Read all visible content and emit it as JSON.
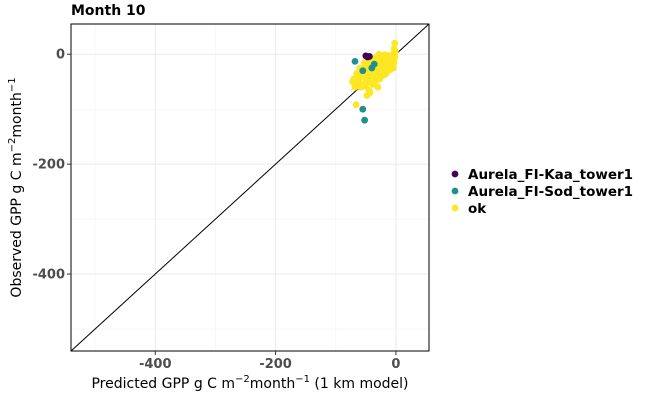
{
  "chart_data": {
    "type": "scatter",
    "title": "Month 10",
    "xlabel": {
      "main": "Predicted GPP g C m",
      "sup1": "−2",
      "mid": "month",
      "sup2": "−1",
      "tail": " (1 km model)"
    },
    "ylabel": {
      "main": "Observed GPP g C m",
      "sup1": "−2",
      "mid": "month",
      "sup2": "−1"
    },
    "xlim": [
      -540,
      55
    ],
    "ylim": [
      -540,
      55
    ],
    "x_ticks": [
      -400,
      -200,
      0
    ],
    "x_tick_labels": [
      "-400",
      "-200",
      "0"
    ],
    "y_ticks": [
      0,
      -200,
      -400
    ],
    "y_tick_labels": [
      "0",
      "-200",
      "-400"
    ],
    "grid": true,
    "reference_line": "y = x",
    "legend_position": "right",
    "series": [
      {
        "name": "Aurela_FI-Kaa_tower1",
        "color": "#440154",
        "points": [
          [
            -50,
            -3
          ],
          [
            -47,
            -5
          ],
          [
            -44,
            -4
          ]
        ]
      },
      {
        "name": "Aurela_FI-Sod_tower1",
        "color": "#21908C",
        "points": [
          [
            -68,
            -13
          ],
          [
            -55,
            -100
          ],
          [
            -52,
            -120
          ],
          [
            -55,
            -30
          ],
          [
            -40,
            -25
          ],
          [
            -36,
            -18
          ]
        ]
      },
      {
        "name": "ok",
        "color": "#FDE725",
        "points": [
          [
            -2,
            20
          ],
          [
            -3,
            10
          ],
          [
            -1,
            5
          ],
          [
            -5,
            0
          ],
          [
            -2,
            -5
          ],
          [
            -6,
            -10
          ],
          [
            -3,
            -15
          ],
          [
            -8,
            -20
          ],
          [
            -4,
            -25
          ],
          [
            -10,
            -5
          ],
          [
            -12,
            -12
          ],
          [
            -15,
            -18
          ],
          [
            -18,
            -22
          ],
          [
            -20,
            -8
          ],
          [
            -22,
            -30
          ],
          [
            -25,
            -15
          ],
          [
            -28,
            -25
          ],
          [
            -30,
            -35
          ],
          [
            -32,
            -5
          ],
          [
            -35,
            -20
          ],
          [
            -38,
            -28
          ],
          [
            -40,
            -40
          ],
          [
            -42,
            -12
          ],
          [
            -45,
            -22
          ],
          [
            -48,
            -35
          ],
          [
            -50,
            -45
          ],
          [
            -52,
            -15
          ],
          [
            -55,
            -55
          ],
          [
            -58,
            -40
          ],
          [
            -60,
            -25
          ],
          [
            -62,
            -50
          ],
          [
            -65,
            -35
          ],
          [
            -68,
            -60
          ],
          [
            -70,
            -45
          ],
          [
            -72,
            -50
          ],
          [
            -66,
            -92
          ],
          [
            -45,
            -65
          ],
          [
            -48,
            -75
          ],
          [
            -43,
            -70
          ],
          [
            -38,
            -55
          ],
          [
            -33,
            -48
          ],
          [
            -30,
            -60
          ],
          [
            -27,
            -45
          ],
          [
            -24,
            -40
          ],
          [
            -20,
            -38
          ],
          [
            -16,
            -35
          ],
          [
            -13,
            -30
          ],
          [
            -9,
            -28
          ],
          [
            -6,
            -22
          ],
          [
            -4,
            -12
          ],
          [
            -2,
            -2
          ],
          [
            -14,
            -2
          ],
          [
            -23,
            -10
          ],
          [
            -33,
            -14
          ],
          [
            -36,
            -32
          ],
          [
            -41,
            -50
          ],
          [
            -46,
            -30
          ],
          [
            -53,
            -25
          ],
          [
            -57,
            -32
          ],
          [
            -61,
            -42
          ],
          [
            -64,
            -55
          ],
          [
            -58,
            -60
          ],
          [
            -51,
            -58
          ],
          [
            -47,
            -52
          ],
          [
            -39,
            -42
          ],
          [
            -31,
            -38
          ],
          [
            -26,
            -33
          ],
          [
            -21,
            -27
          ],
          [
            -17,
            -20
          ],
          [
            -11,
            -16
          ],
          [
            -7,
            -8
          ],
          [
            -28,
            0
          ],
          [
            -19,
            -1
          ],
          [
            -37,
            -8
          ],
          [
            -44,
            -18
          ]
        ]
      }
    ]
  }
}
